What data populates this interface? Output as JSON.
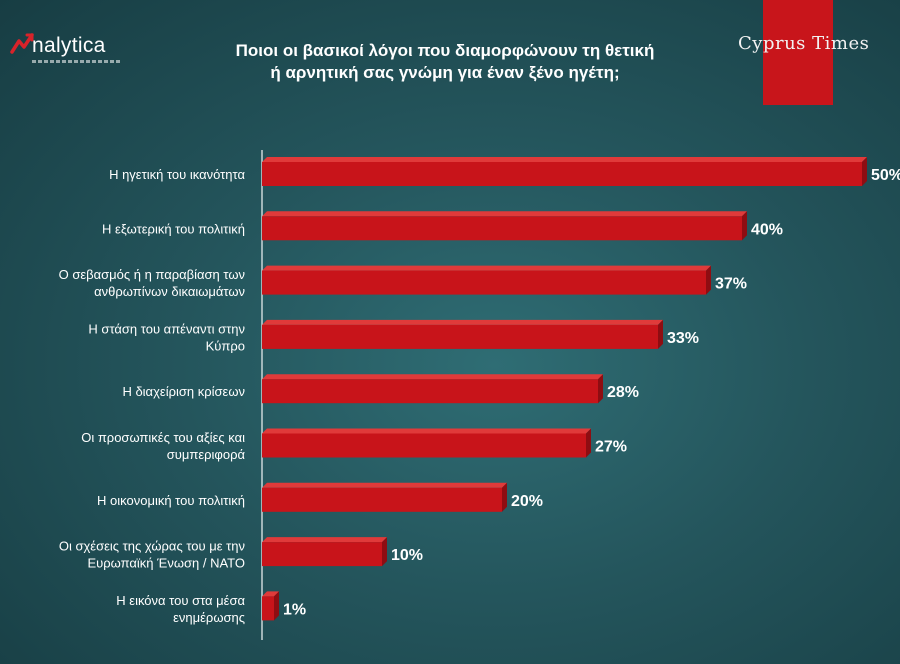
{
  "logo": {
    "text": "nalytica",
    "icon": "analytica-logo-icon"
  },
  "header": {
    "title_line1": "Ποιοι οι βασικοί λόγοι που διαμορφώνουν τη θετική",
    "title_line2": "ή αρνητική σας γνώμη για έναν ξένο ηγέτη;",
    "brand": "Cyprus Times",
    "brand_color": "#c8151b"
  },
  "chart_data": {
    "type": "bar",
    "orientation": "horizontal",
    "title": "Ποιοι οι βασικοί λόγοι που διαμορφώνουν τη θετική ή αρνητική σας γνώμη για έναν ξένο ηγέτη;",
    "categories": [
      [
        "Η ηγετική του ικανότητα"
      ],
      [
        "Η εξωτερική του πολιτική"
      ],
      [
        "Ο σεβασμός ή η παραβίαση των",
        "ανθρωπίνων δικαιωμάτων"
      ],
      [
        "Η στάση του απέναντι στην",
        "Κύπρο"
      ],
      [
        "Η διαχείριση κρίσεων"
      ],
      [
        "Οι προσωπικές του αξίες και",
        "συμπεριφορά"
      ],
      [
        "Η οικονομική του πολιτική"
      ],
      [
        "Οι σχέσεις της χώρας του με την",
        "Ευρωπαϊκή Ένωση / ΝΑΤΟ"
      ],
      [
        "Η εικόνα του στα μέσα",
        "ενημέρωσης"
      ]
    ],
    "values": [
      50,
      40,
      37,
      33,
      28,
      27,
      20,
      10,
      1
    ],
    "value_labels": [
      "50%",
      "40%",
      "37%",
      "33%",
      "28%",
      "27%",
      "20%",
      "10%",
      "1%"
    ],
    "xlim": [
      0,
      50
    ],
    "bar_color": "#c8141a",
    "grid": false
  }
}
